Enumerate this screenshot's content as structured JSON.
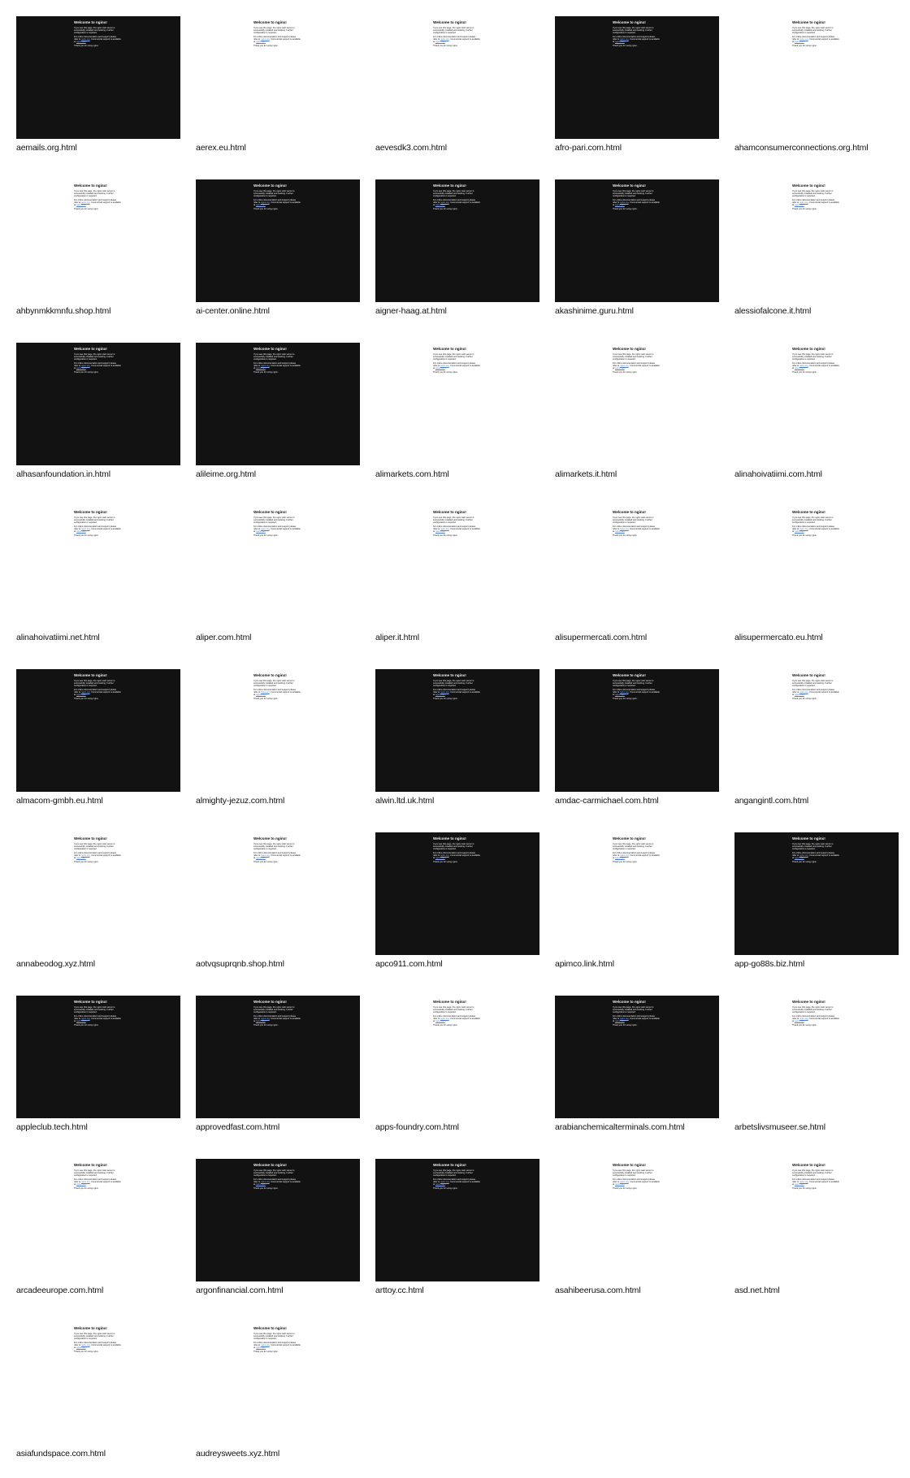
{
  "preview": {
    "title": "Welcome to nginx!",
    "para1": "If you see this page, the nginx web server is successfully installed and working. Further configuration is required.",
    "para2_text": "For online documentation and support please refer to",
    "para2_link1": "nginx.org",
    "para2_mid": ". Commercial support is available at",
    "para2_link2": "nginx.com",
    "para3": "Thank you for using nginx."
  },
  "colors": {
    "dark_bg": "#121212",
    "light_bg": "#ffffff",
    "caption_text": "#111111"
  },
  "tiles": [
    {
      "file": "aemails.org.html",
      "theme": "dark"
    },
    {
      "file": "aerex.eu.html",
      "theme": "light"
    },
    {
      "file": "aevesdk3.com.html",
      "theme": "light"
    },
    {
      "file": "afro-pari.com.html",
      "theme": "dark"
    },
    {
      "file": "ahamconsumerconnections.org.html",
      "theme": "light"
    },
    {
      "file": "ahbynmkkmnfu.shop.html",
      "theme": "light"
    },
    {
      "file": "ai-center.online.html",
      "theme": "dark"
    },
    {
      "file": "aigner-haag.at.html",
      "theme": "dark"
    },
    {
      "file": "akashinime.guru.html",
      "theme": "dark"
    },
    {
      "file": "alessiofalcone.it.html",
      "theme": "light"
    },
    {
      "file": "alhasanfoundation.in.html",
      "theme": "dark"
    },
    {
      "file": "alileime.org.html",
      "theme": "dark"
    },
    {
      "file": "alimarkets.com.html",
      "theme": "light"
    },
    {
      "file": "alimarkets.it.html",
      "theme": "light"
    },
    {
      "file": "alinahoivatiimi.com.html",
      "theme": "light"
    },
    {
      "file": "alinahoivatiimi.net.html",
      "theme": "light"
    },
    {
      "file": "aliper.com.html",
      "theme": "light"
    },
    {
      "file": "aliper.it.html",
      "theme": "light"
    },
    {
      "file": "alisupermercati.com.html",
      "theme": "light"
    },
    {
      "file": "alisupermercato.eu.html",
      "theme": "light"
    },
    {
      "file": "almacom-gmbh.eu.html",
      "theme": "dark"
    },
    {
      "file": "almighty-jezuz.com.html",
      "theme": "light"
    },
    {
      "file": "alwin.ltd.uk.html",
      "theme": "dark"
    },
    {
      "file": "amdac-carmichael.com.html",
      "theme": "dark"
    },
    {
      "file": "angangintl.com.html",
      "theme": "light"
    },
    {
      "file": "annabeodog.xyz.html",
      "theme": "light"
    },
    {
      "file": "aotvqsuprqnb.shop.html",
      "theme": "light"
    },
    {
      "file": "apco911.com.html",
      "theme": "dark"
    },
    {
      "file": "apimco.link.html",
      "theme": "light"
    },
    {
      "file": "app-go88s.biz.html",
      "theme": "dark"
    },
    {
      "file": "appleclub.tech.html",
      "theme": "dark"
    },
    {
      "file": "approvedfast.com.html",
      "theme": "dark"
    },
    {
      "file": "apps-foundry.com.html",
      "theme": "light"
    },
    {
      "file": "arabianchemicalterminals.com.html",
      "theme": "dark"
    },
    {
      "file": "arbetslivsmuseer.se.html",
      "theme": "light"
    },
    {
      "file": "arcadeeurope.com.html",
      "theme": "light"
    },
    {
      "file": "argonfinancial.com.html",
      "theme": "dark"
    },
    {
      "file": "arttoy.cc.html",
      "theme": "dark"
    },
    {
      "file": "asahibeerusa.com.html",
      "theme": "light"
    },
    {
      "file": "asd.net.html",
      "theme": "light"
    },
    {
      "file": "asiafundspace.com.html",
      "theme": "light"
    },
    {
      "file": "audreysweets.xyz.html",
      "theme": "light"
    }
  ]
}
